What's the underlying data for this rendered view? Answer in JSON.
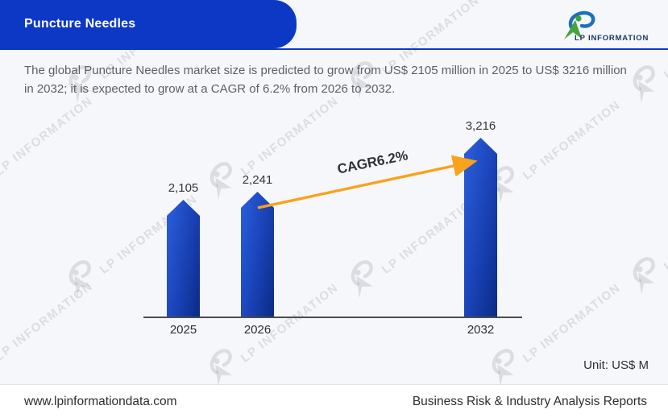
{
  "header": {
    "title": "Puncture Needles"
  },
  "brand": {
    "logo_text": "LP INFORMATION"
  },
  "summary": "The global Puncture Needles market size is predicted to grow from US$ 2105 million in 2025 to US$ 3216 million in 2032; it is expected to grow at a CAGR of 6.2% from 2026 to 2032.",
  "chart_data": {
    "type": "bar",
    "categories": [
      "2025",
      "2026",
      "2032"
    ],
    "values": [
      2105,
      2241,
      3216
    ],
    "value_labels": [
      "2,105",
      "2,241",
      "3,216"
    ],
    "annotation": "CAGR6.2%",
    "unit_label": "Unit: US$ M",
    "ylim": [
      0,
      3400
    ],
    "grid": false,
    "legend": false,
    "bar_gradient": [
      "#2c60dd",
      "#0a2b85"
    ],
    "arrow_color": "#F9A21B"
  },
  "watermark": {
    "text": "LP INFORMATION"
  },
  "footer": {
    "website": "www.lpinformationdata.com",
    "tagline": "Business Risk & Industry Analysis Reports"
  },
  "colors": {
    "accent_blue": "#0d38c6",
    "logo_blue": "#1d72b8",
    "logo_green": "#47a33c"
  }
}
